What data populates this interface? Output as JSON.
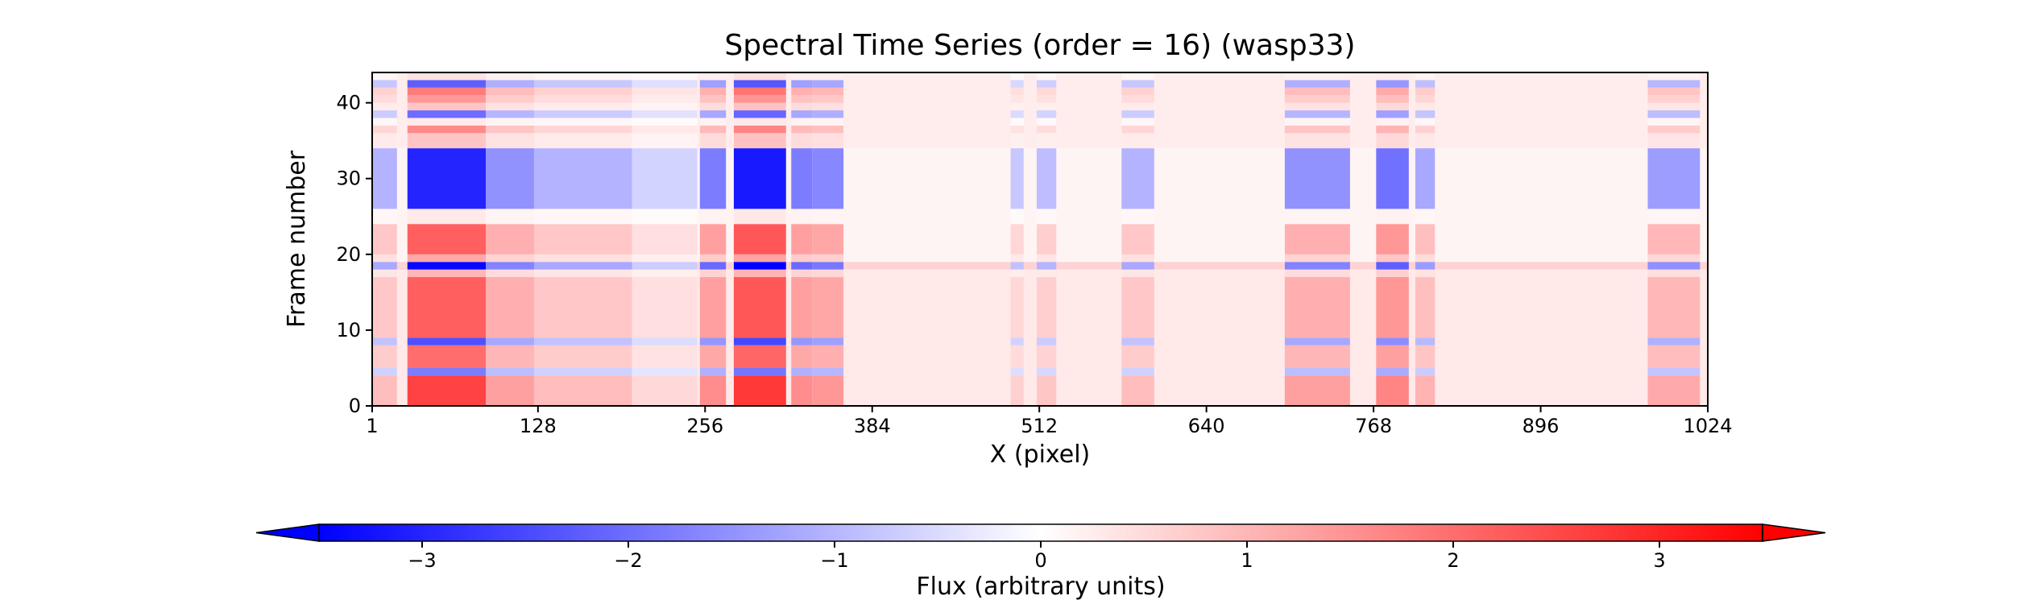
{
  "chart_data": {
    "type": "heatmap",
    "title": "Spectral Time Series (order = 16) (wasp33)",
    "xlabel": "X (pixel)",
    "ylabel": "Frame number",
    "xlim": [
      1,
      1024
    ],
    "ylim": [
      0,
      44
    ],
    "x_ticks": [
      1,
      128,
      256,
      384,
      512,
      640,
      768,
      896,
      1024
    ],
    "y_ticks": [
      0,
      10,
      20,
      30,
      40
    ],
    "n_frames": 44,
    "colormap": "bwr",
    "colormap_colors": {
      "low": "#0000ff",
      "mid": "#ffffff",
      "high": "#ff0000"
    },
    "colorbar": {
      "label": "Flux (arbitrary units)",
      "vmin": -3.5,
      "vmax": 3.5,
      "ticks": [
        -3,
        -2,
        -1,
        0,
        1,
        2,
        3
      ],
      "tick_labels": [
        "−3",
        "−2",
        "−1",
        "0",
        "1",
        "2",
        "3"
      ],
      "extend": "both"
    },
    "column_features": [
      {
        "x_start": 1,
        "x_end": 20,
        "weight": 0.35
      },
      {
        "x_start": 28,
        "x_end": 88,
        "weight": 1.0
      },
      {
        "x_start": 88,
        "x_end": 125,
        "weight": 0.5
      },
      {
        "x_start": 125,
        "x_end": 200,
        "weight": 0.35
      },
      {
        "x_start": 200,
        "x_end": 250,
        "weight": 0.2
      },
      {
        "x_start": 252,
        "x_end": 272,
        "weight": 0.6
      },
      {
        "x_start": 278,
        "x_end": 318,
        "weight": 1.05
      },
      {
        "x_start": 322,
        "x_end": 338,
        "weight": 0.6
      },
      {
        "x_start": 338,
        "x_end": 362,
        "weight": 0.55
      },
      {
        "x_start": 490,
        "x_end": 500,
        "weight": 0.25
      },
      {
        "x_start": 510,
        "x_end": 525,
        "weight": 0.3
      },
      {
        "x_start": 575,
        "x_end": 600,
        "weight": 0.35
      },
      {
        "x_start": 700,
        "x_end": 750,
        "weight": 0.5
      },
      {
        "x_start": 770,
        "x_end": 795,
        "weight": 0.65
      },
      {
        "x_start": 800,
        "x_end": 815,
        "weight": 0.4
      },
      {
        "x_start": 978,
        "x_end": 1018,
        "weight": 0.45
      }
    ],
    "frame_levels": [
      {
        "frame_start": 0,
        "frame_end": 4,
        "level": 2.6
      },
      {
        "frame_start": 4,
        "frame_end": 5,
        "level": -1.8
      },
      {
        "frame_start": 5,
        "frame_end": 8,
        "level": 2.0
      },
      {
        "frame_start": 8,
        "frame_end": 9,
        "level": -2.4
      },
      {
        "frame_start": 9,
        "frame_end": 17,
        "level": 2.2
      },
      {
        "frame_start": 17,
        "frame_end": 18,
        "level": 1.0
      },
      {
        "frame_start": 18,
        "frame_end": 19,
        "level": -3.4
      },
      {
        "frame_start": 19,
        "frame_end": 20,
        "level": 1.2
      },
      {
        "frame_start": 20,
        "frame_end": 24,
        "level": 2.2
      },
      {
        "frame_start": 24,
        "frame_end": 26,
        "level": 0.3
      },
      {
        "frame_start": 26,
        "frame_end": 34,
        "level": -3.0
      },
      {
        "frame_start": 34,
        "frame_end": 36,
        "level": 0.8
      },
      {
        "frame_start": 36,
        "frame_end": 37,
        "level": 1.6
      },
      {
        "frame_start": 37,
        "frame_end": 38,
        "level": 0.3
      },
      {
        "frame_start": 38,
        "frame_end": 39,
        "level": -2.0
      },
      {
        "frame_start": 39,
        "frame_end": 40,
        "level": 0.8
      },
      {
        "frame_start": 40,
        "frame_end": 41,
        "level": 1.4
      },
      {
        "frame_start": 41,
        "frame_end": 42,
        "level": 1.8
      },
      {
        "frame_start": 42,
        "frame_end": 43,
        "level": -2.2
      },
      {
        "frame_start": 43,
        "frame_end": 44,
        "level": 0.4
      }
    ],
    "continuum_levels": [
      {
        "frame_start": 0,
        "frame_end": 18,
        "level": 0.3
      },
      {
        "frame_start": 18,
        "frame_end": 19,
        "level": 0.6
      },
      {
        "frame_start": 19,
        "frame_end": 34,
        "level": 0.15
      },
      {
        "frame_start": 34,
        "frame_end": 44,
        "level": 0.25
      }
    ],
    "grid": false,
    "legend": "none"
  }
}
